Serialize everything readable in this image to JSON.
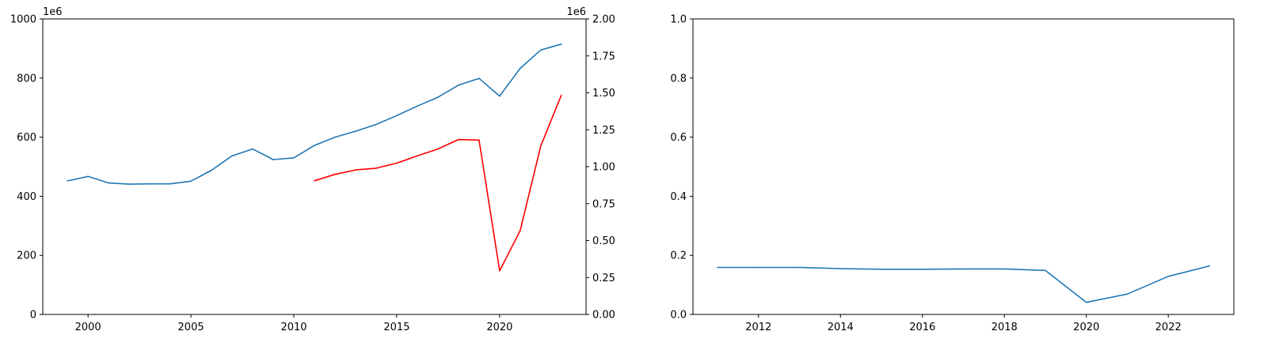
{
  "chart_data": [
    {
      "type": "line",
      "title": "",
      "xlabel": "",
      "ylabel": "",
      "y2label": "",
      "grid": false,
      "xlim": [
        1997.8,
        2024.2
      ],
      "ylim": [
        0,
        1000
      ],
      "y2lim": [
        0,
        2.0
      ],
      "x_ticks": [
        "2000",
        "2005",
        "2010",
        "2015",
        "2020"
      ],
      "y_ticks": [
        "0",
        "200",
        "400",
        "600",
        "800",
        "1000"
      ],
      "y2_ticks": [
        "0.00",
        "0.25",
        "0.50",
        "0.75",
        "1.00",
        "1.25",
        "1.50",
        "1.75",
        "2.00"
      ],
      "y_offset_label": "1e6",
      "y2_offset_label": "1e6",
      "series": [
        {
          "axis": "left",
          "color": "#1f77b4",
          "x": [
            1999,
            2000,
            2001,
            2002,
            2003,
            2004,
            2005,
            2006,
            2007,
            2008,
            2009,
            2010,
            2011,
            2012,
            2013,
            2014,
            2015,
            2016,
            2017,
            2018,
            2019,
            2020,
            2021,
            2022,
            2023
          ],
          "values": [
            452,
            467,
            445,
            441,
            442,
            442,
            451,
            488,
            537,
            560,
            524,
            530,
            572,
            600,
            620,
            643,
            673,
            705,
            735,
            776,
            799,
            739,
            833,
            895,
            915
          ]
        },
        {
          "axis": "right",
          "color": "#ff0000",
          "x": [
            2011,
            2012,
            2013,
            2014,
            2015,
            2016,
            2017,
            2018,
            2019,
            2020,
            2021,
            2022,
            2023
          ],
          "values": [
            0.905,
            0.948,
            0.978,
            0.99,
            1.024,
            1.073,
            1.12,
            1.184,
            1.18,
            0.295,
            0.567,
            1.14,
            1.484
          ]
        }
      ]
    },
    {
      "type": "line",
      "title": "",
      "xlabel": "",
      "ylabel": "",
      "grid": false,
      "xlim": [
        2010.4,
        2023.6
      ],
      "ylim": [
        0,
        1.0
      ],
      "x_ticks": [
        "2012",
        "2014",
        "2016",
        "2018",
        "2020",
        "2022"
      ],
      "y_ticks": [
        "0.0",
        "0.2",
        "0.4",
        "0.6",
        "0.8",
        "1.0"
      ],
      "series": [
        {
          "axis": "left",
          "color": "#1f77b4",
          "x": [
            2011,
            2012,
            2013,
            2014,
            2015,
            2016,
            2017,
            2018,
            2019,
            2020,
            2021,
            2022,
            2023
          ],
          "values": [
            0.159,
            0.159,
            0.159,
            0.155,
            0.153,
            0.153,
            0.154,
            0.154,
            0.149,
            0.041,
            0.069,
            0.129,
            0.164
          ]
        }
      ]
    }
  ]
}
